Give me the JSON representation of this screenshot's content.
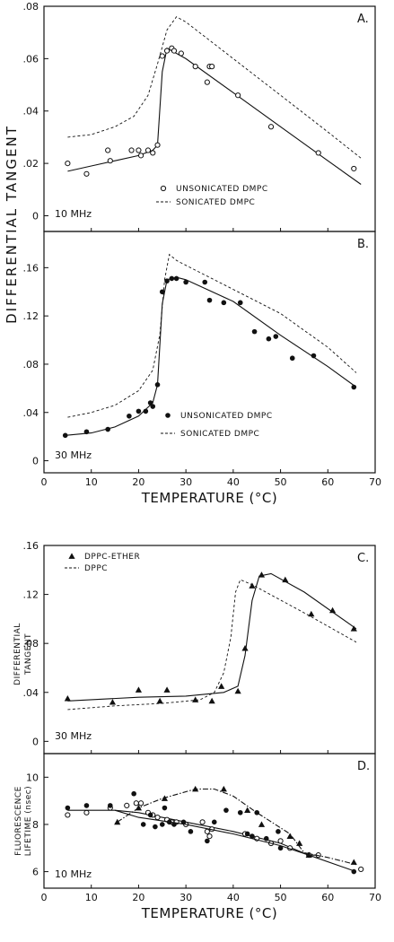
{
  "chart_data": [
    {
      "id": "A",
      "type": "line",
      "panel_label": "A.",
      "frequency_label": "10 MHz",
      "xlim": [
        0,
        70
      ],
      "ylim": [
        -0.006,
        0.08
      ],
      "y_ticks": [
        ".08",
        ".06",
        ".04",
        ".02",
        "0"
      ],
      "legend": [
        {
          "marker": "open-circle",
          "label": "UNSONICATED DMPC"
        },
        {
          "marker": "dashed-line",
          "label": "SONICATED DMPC"
        }
      ],
      "series": [
        {
          "name": "UNSONICATED DMPC",
          "marker": "open-circle",
          "points": [
            [
              5,
              0.02
            ],
            [
              9,
              0.016
            ],
            [
              13.5,
              0.025
            ],
            [
              14,
              0.021
            ],
            [
              18.5,
              0.025
            ],
            [
              20,
              0.025
            ],
            [
              20.5,
              0.023
            ],
            [
              22,
              0.025
            ],
            [
              23,
              0.024
            ],
            [
              24,
              0.027
            ],
            [
              25,
              0.061
            ],
            [
              26,
              0.063
            ],
            [
              27,
              0.064
            ],
            [
              27.5,
              0.063
            ],
            [
              29,
              0.062
            ],
            [
              32,
              0.057
            ],
            [
              34.5,
              0.051
            ],
            [
              35,
              0.057
            ],
            [
              35.5,
              0.057
            ],
            [
              41,
              0.046
            ],
            [
              48,
              0.034
            ],
            [
              58,
              0.024
            ],
            [
              65.5,
              0.018
            ]
          ],
          "fit": [
            [
              5,
              0.017
            ],
            [
              10,
              0.019
            ],
            [
              15,
              0.021
            ],
            [
              20,
              0.023
            ],
            [
              23,
              0.025
            ],
            [
              24,
              0.027
            ],
            [
              25,
              0.055
            ],
            [
              26,
              0.064
            ],
            [
              30,
              0.06
            ],
            [
              40,
              0.047
            ],
            [
              50,
              0.034
            ],
            [
              60,
              0.021
            ],
            [
              67,
              0.012
            ]
          ]
        },
        {
          "name": "SONICATED DMPC",
          "style": "dashed",
          "points": [
            [
              5,
              0.03
            ],
            [
              10,
              0.031
            ],
            [
              15,
              0.034
            ],
            [
              19,
              0.038
            ],
            [
              22,
              0.046
            ],
            [
              24,
              0.058
            ],
            [
              26,
              0.071
            ],
            [
              28,
              0.076
            ],
            [
              30,
              0.074
            ],
            [
              40,
              0.06
            ],
            [
              50,
              0.046
            ],
            [
              60,
              0.032
            ],
            [
              67,
              0.022
            ]
          ]
        }
      ]
    },
    {
      "id": "B",
      "type": "line",
      "panel_label": "B.",
      "frequency_label": "30 MHz",
      "xlim": [
        0,
        70
      ],
      "ylim": [
        -0.01,
        0.19
      ],
      "y_ticks": [
        ".16",
        ".12",
        ".08",
        ".04",
        "0"
      ],
      "xlabel": "TEMPERATURE (°C)",
      "x_ticks": [
        "0",
        "10",
        "20",
        "30",
        "40",
        "50",
        "60",
        "70"
      ],
      "legend": [
        {
          "marker": "filled-circle",
          "label": "UNSONICATED DMPC"
        },
        {
          "marker": "dashed-line",
          "label": "SONICATED DMPC"
        }
      ],
      "series": [
        {
          "name": "UNSONICATED DMPC",
          "marker": "filled-circle",
          "points": [
            [
              4.5,
              0.021
            ],
            [
              9,
              0.024
            ],
            [
              13.5,
              0.026
            ],
            [
              18,
              0.037
            ],
            [
              20,
              0.041
            ],
            [
              21.5,
              0.041
            ],
            [
              22.5,
              0.048
            ],
            [
              23,
              0.045
            ],
            [
              24,
              0.063
            ],
            [
              25,
              0.14
            ],
            [
              26,
              0.149
            ],
            [
              27,
              0.151
            ],
            [
              28,
              0.151
            ],
            [
              30,
              0.148
            ],
            [
              34,
              0.148
            ],
            [
              35,
              0.133
            ],
            [
              38,
              0.131
            ],
            [
              41.5,
              0.131
            ],
            [
              44.5,
              0.107
            ],
            [
              47.5,
              0.101
            ],
            [
              49,
              0.103
            ],
            [
              52.5,
              0.085
            ],
            [
              57,
              0.087
            ],
            [
              65.5,
              0.061
            ]
          ],
          "fit": [
            [
              4.5,
              0.021
            ],
            [
              10,
              0.023
            ],
            [
              15,
              0.028
            ],
            [
              20,
              0.037
            ],
            [
              23,
              0.048
            ],
            [
              24,
              0.063
            ],
            [
              25,
              0.13
            ],
            [
              26,
              0.15
            ],
            [
              28,
              0.152
            ],
            [
              30,
              0.15
            ],
            [
              40,
              0.132
            ],
            [
              50,
              0.104
            ],
            [
              60,
              0.078
            ],
            [
              66,
              0.061
            ]
          ]
        },
        {
          "name": "SONICATED DMPC",
          "style": "dashed",
          "points": [
            [
              5,
              0.036
            ],
            [
              10,
              0.04
            ],
            [
              15,
              0.046
            ],
            [
              20,
              0.058
            ],
            [
              23,
              0.075
            ],
            [
              24.5,
              0.105
            ],
            [
              25.5,
              0.15
            ],
            [
              26.5,
              0.171
            ],
            [
              28,
              0.166
            ],
            [
              30,
              0.162
            ],
            [
              40,
              0.142
            ],
            [
              50,
              0.122
            ],
            [
              60,
              0.094
            ],
            [
              66,
              0.073
            ]
          ]
        }
      ]
    },
    {
      "id": "C",
      "type": "line",
      "panel_label": "C.",
      "frequency_label": "30 MHz",
      "xlim": [
        0,
        70
      ],
      "ylim": [
        -0.01,
        0.16
      ],
      "y_ticks": [
        ".16",
        ".12",
        ".08",
        ".04",
        "0"
      ],
      "ylabel": "DIFFERENTIAL TANGENT",
      "legend": [
        {
          "marker": "filled-triangle",
          "label": "DPPC-ETHER"
        },
        {
          "marker": "dashed-line",
          "label": "DPPC"
        }
      ],
      "series": [
        {
          "name": "DPPC-ETHER",
          "marker": "filled-triangle",
          "points": [
            [
              5,
              0.035
            ],
            [
              14.5,
              0.032
            ],
            [
              20,
              0.042
            ],
            [
              24.5,
              0.033
            ],
            [
              26,
              0.042
            ],
            [
              32,
              0.034
            ],
            [
              35.5,
              0.033
            ],
            [
              37.5,
              0.045
            ],
            [
              41,
              0.041
            ],
            [
              42.5,
              0.076
            ],
            [
              44,
              0.127
            ],
            [
              46,
              0.136
            ],
            [
              51,
              0.132
            ],
            [
              56.5,
              0.104
            ],
            [
              61,
              0.107
            ],
            [
              65.5,
              0.092
            ]
          ],
          "fit": [
            [
              5,
              0.033
            ],
            [
              20,
              0.036
            ],
            [
              30,
              0.037
            ],
            [
              38,
              0.04
            ],
            [
              41,
              0.045
            ],
            [
              42.5,
              0.07
            ],
            [
              44,
              0.115
            ],
            [
              45.5,
              0.135
            ],
            [
              48,
              0.137
            ],
            [
              55,
              0.122
            ],
            [
              66,
              0.092
            ]
          ]
        },
        {
          "name": "DPPC",
          "style": "dashed",
          "points": [
            [
              5,
              0.026
            ],
            [
              15,
              0.029
            ],
            [
              25,
              0.031
            ],
            [
              33,
              0.034
            ],
            [
              36,
              0.04
            ],
            [
              38,
              0.056
            ],
            [
              39.5,
              0.085
            ],
            [
              40.5,
              0.122
            ],
            [
              41.5,
              0.132
            ],
            [
              44,
              0.128
            ],
            [
              55,
              0.105
            ],
            [
              66,
              0.081
            ]
          ]
        }
      ]
    },
    {
      "id": "D",
      "type": "scatter",
      "panel_label": "D.",
      "frequency_label": "10 MHz",
      "xlim": [
        0,
        70
      ],
      "ylim": [
        5.3,
        11
      ],
      "y_ticks": [
        "10",
        "8",
        "6"
      ],
      "ylabel": "FLUORESCENCE LIFETIME (nsec)",
      "xlabel": "TEMPERATURE (°C)",
      "x_ticks": [
        "0",
        "10",
        "20",
        "30",
        "40",
        "50",
        "60",
        "70"
      ],
      "series": [
        {
          "name": "open-circle",
          "marker": "open-circle",
          "points": [
            [
              5,
              8.4
            ],
            [
              9,
              8.5
            ],
            [
              14,
              8.7
            ],
            [
              17.5,
              8.8
            ],
            [
              19.5,
              8.9
            ],
            [
              20.5,
              8.9
            ],
            [
              22,
              8.5
            ],
            [
              23,
              8.4
            ],
            [
              24,
              8.3
            ],
            [
              26,
              8.2
            ],
            [
              27,
              8.1
            ],
            [
              28,
              8.1
            ],
            [
              30,
              8.0
            ],
            [
              33.5,
              8.1
            ],
            [
              34.5,
              7.7
            ],
            [
              35,
              7.5
            ],
            [
              35.5,
              7.8
            ],
            [
              42.5,
              7.6
            ],
            [
              45,
              7.4
            ],
            [
              48,
              7.2
            ],
            [
              50,
              7.3
            ],
            [
              52,
              7.0
            ],
            [
              56,
              6.7
            ],
            [
              58,
              6.7
            ],
            [
              67,
              6.1
            ]
          ],
          "fit": [
            [
              15,
              8.6
            ],
            [
              20,
              8.5
            ],
            [
              30,
              8.1
            ],
            [
              40,
              7.7
            ],
            [
              50,
              7.2
            ],
            [
              56,
              6.7
            ],
            [
              58,
              6.7
            ]
          ]
        },
        {
          "name": "filled-circle",
          "marker": "filled-circle",
          "points": [
            [
              5,
              8.7
            ],
            [
              9,
              8.8
            ],
            [
              14,
              8.8
            ],
            [
              19,
              9.3
            ],
            [
              21,
              8.0
            ],
            [
              22.5,
              8.4
            ],
            [
              23.5,
              7.9
            ],
            [
              25,
              8.0
            ],
            [
              25.5,
              8.7
            ],
            [
              26.5,
              8.1
            ],
            [
              27.5,
              8.0
            ],
            [
              29.5,
              8.1
            ],
            [
              31,
              7.7
            ],
            [
              34.5,
              7.3
            ],
            [
              36,
              8.1
            ],
            [
              38.5,
              8.6
            ],
            [
              41.5,
              8.5
            ],
            [
              43,
              7.6
            ],
            [
              44,
              7.5
            ],
            [
              45,
              8.5
            ],
            [
              47,
              7.4
            ],
            [
              49.5,
              7.7
            ],
            [
              50,
              7.0
            ],
            [
              65.5,
              6.0
            ]
          ],
          "fit": [
            [
              5,
              8.6
            ],
            [
              15,
              8.6
            ],
            [
              20,
              8.3
            ],
            [
              30,
              8.0
            ],
            [
              40,
              7.6
            ],
            [
              50,
              7.1
            ],
            [
              56,
              6.7
            ],
            [
              66,
              6.0
            ]
          ]
        },
        {
          "name": "filled-triangle",
          "marker": "filled-triangle",
          "points": [
            [
              15.5,
              8.1
            ],
            [
              20,
              8.7
            ],
            [
              25.5,
              9.1
            ],
            [
              32,
              9.5
            ],
            [
              38,
              9.5
            ],
            [
              43,
              8.6
            ],
            [
              46,
              8.0
            ],
            [
              52,
              7.5
            ],
            [
              54,
              7.2
            ],
            [
              56,
              6.7
            ],
            [
              65.5,
              6.4
            ]
          ],
          "fit": [
            [
              15.5,
              8.1
            ],
            [
              20,
              8.7
            ],
            [
              25,
              9.1
            ],
            [
              32,
              9.5
            ],
            [
              36,
              9.5
            ],
            [
              40,
              9.2
            ],
            [
              45,
              8.5
            ],
            [
              52,
              7.6
            ],
            [
              55,
              6.8
            ],
            [
              60,
              6.6
            ],
            [
              66,
              6.3
            ]
          ]
        }
      ]
    }
  ],
  "shared_labels": {
    "differential_tangent": "DIFFERENTIAL TANGENT"
  }
}
